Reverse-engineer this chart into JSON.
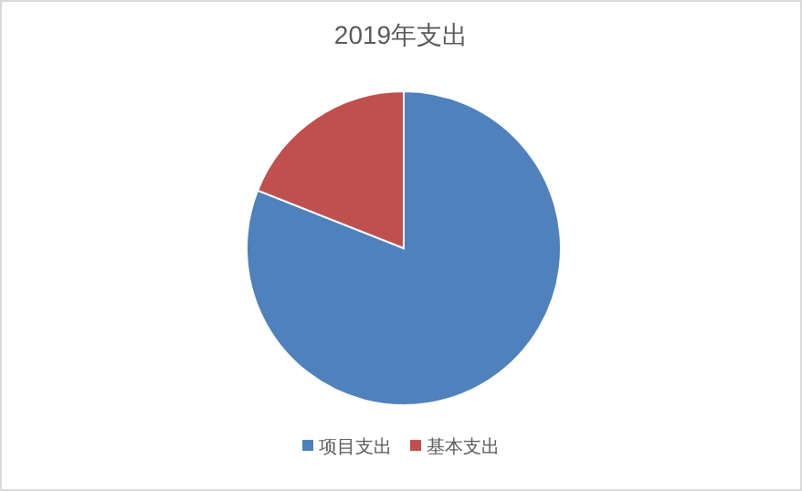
{
  "chart_data": {
    "type": "pie",
    "title": "2019年支出",
    "categories": [
      "项目支出",
      "基本支出"
    ],
    "values": [
      81,
      19
    ],
    "colors": [
      "#4f81bd",
      "#c0504d"
    ],
    "legend": "bottom"
  }
}
